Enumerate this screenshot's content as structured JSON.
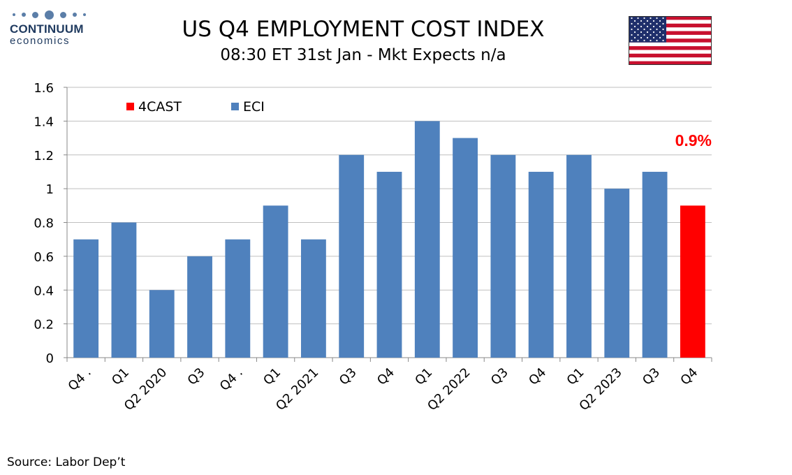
{
  "logo": {
    "name": "CONTINUUM",
    "sub": "economics"
  },
  "header": {
    "title": "US Q4 EMPLOYMENT COST INDEX",
    "subtitle": "08:30 ET 31st Jan - Mkt Expects n/a"
  },
  "flag_icon": "us-flag-icon",
  "source": "Source: Labor Dep’t",
  "colors": {
    "eci": "#4f81bd",
    "forecast": "#ff0000",
    "grid": "#bfbfbf",
    "logo": "#1f3a5f"
  },
  "chart_data": {
    "type": "bar",
    "categories": [
      "Q4 .",
      "Q1",
      "Q2 2020",
      "Q3",
      "Q4 .",
      "Q1",
      "Q2 2021",
      "Q3",
      "Q4",
      "Q1",
      "Q2 2022",
      "Q3",
      "Q4",
      "Q1",
      "Q2 2023",
      "Q3",
      "Q4"
    ],
    "series": [
      {
        "name": "ECI",
        "color": "#4f81bd",
        "values": [
          0.7,
          0.8,
          0.4,
          0.6,
          0.7,
          0.9,
          0.7,
          1.2,
          1.1,
          1.4,
          1.3,
          1.2,
          1.1,
          1.2,
          1.0,
          1.1,
          null
        ]
      },
      {
        "name": "4CAST",
        "color": "#ff0000",
        "values": [
          null,
          null,
          null,
          null,
          null,
          null,
          null,
          null,
          null,
          null,
          null,
          null,
          null,
          null,
          null,
          null,
          0.9
        ]
      }
    ],
    "legend_order": [
      "4CAST",
      "ECI"
    ],
    "legend_position": "top-left",
    "annotation": {
      "text": "0.9%",
      "color": "#ff0000"
    },
    "yticks": [
      "0",
      "0.2",
      "0.4",
      "0.6",
      "0.8",
      "1",
      "1.2",
      "1.4",
      "1.6"
    ],
    "ylim": [
      0,
      1.6
    ],
    "grid": true
  }
}
